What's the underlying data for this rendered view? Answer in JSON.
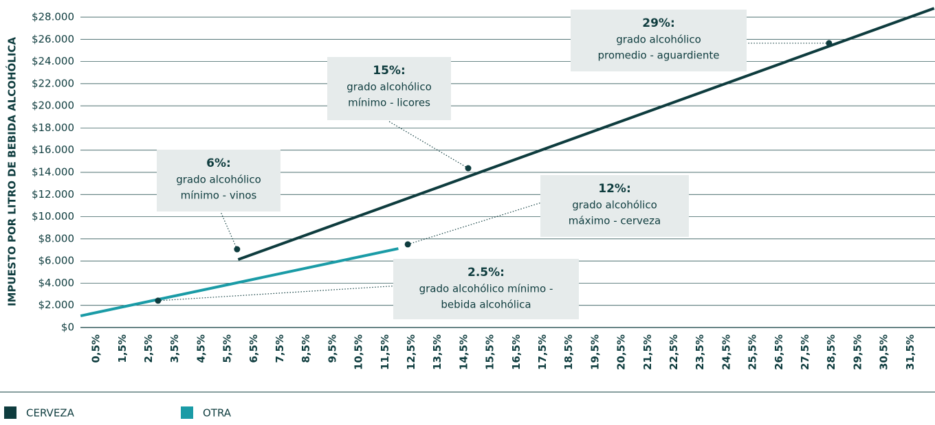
{
  "chart_data": {
    "type": "line",
    "y_label": "IMPUESTO POR LITRO DE BEBIDA ALCOHÓLICA",
    "xlim": [
      -0.1,
      32.4
    ],
    "ylim": [
      0,
      28000
    ],
    "xticks": [
      {
        "value": 0.5,
        "label": "0,5%"
      },
      {
        "value": 1.5,
        "label": "1,5%"
      },
      {
        "value": 2.5,
        "label": "2,5%"
      },
      {
        "value": 3.5,
        "label": "3,5%"
      },
      {
        "value": 4.5,
        "label": "4,5%"
      },
      {
        "value": 5.5,
        "label": "5,5%"
      },
      {
        "value": 6.5,
        "label": "6,5%"
      },
      {
        "value": 7.5,
        "label": "7,5%"
      },
      {
        "value": 8.5,
        "label": "8,5%"
      },
      {
        "value": 9.5,
        "label": "9,5%"
      },
      {
        "value": 10.5,
        "label": "10,5%"
      },
      {
        "value": 11.5,
        "label": "11,5%"
      },
      {
        "value": 12.5,
        "label": "12,5%"
      },
      {
        "value": 13.5,
        "label": "13,5%"
      },
      {
        "value": 14.5,
        "label": "14,5%"
      },
      {
        "value": 15.5,
        "label": "15,5%"
      },
      {
        "value": 16.5,
        "label": "16,5%"
      },
      {
        "value": 17.5,
        "label": "17,5%"
      },
      {
        "value": 18.5,
        "label": "18,5%"
      },
      {
        "value": 19.5,
        "label": "19,5%"
      },
      {
        "value": 20.5,
        "label": "20,5%"
      },
      {
        "value": 21.5,
        "label": "21,5%"
      },
      {
        "value": 22.5,
        "label": "22,5%"
      },
      {
        "value": 23.5,
        "label": "23,5%"
      },
      {
        "value": 24.5,
        "label": "24,5%"
      },
      {
        "value": 25.5,
        "label": "25,5%"
      },
      {
        "value": 26.5,
        "label": "26,5%"
      },
      {
        "value": 27.5,
        "label": "27,5%"
      },
      {
        "value": 28.5,
        "label": "28,5%"
      },
      {
        "value": 29.5,
        "label": "29,5%"
      },
      {
        "value": 30.5,
        "label": "30,5%"
      },
      {
        "value": 31.5,
        "label": "31,5%"
      }
    ],
    "yticks": [
      {
        "value": 0,
        "label": "$0"
      },
      {
        "value": 2000,
        "label": "$2.000"
      },
      {
        "value": 4000,
        "label": "$4.000"
      },
      {
        "value": 6000,
        "label": "$6.000"
      },
      {
        "value": 8000,
        "label": "$8.000"
      },
      {
        "value": 10000,
        "label": "$10.000"
      },
      {
        "value": 12000,
        "label": "$12.000"
      },
      {
        "value": 14000,
        "label": "$14.000"
      },
      {
        "value": 16000,
        "label": "$16.000"
      },
      {
        "value": 18000,
        "label": "$18.000"
      },
      {
        "value": 20000,
        "label": "$20.000"
      },
      {
        "value": 22000,
        "label": "$22.000"
      },
      {
        "value": 24000,
        "label": "$24.000"
      },
      {
        "value": 26000,
        "label": "$26.000"
      },
      {
        "value": 28000,
        "label": "$28.000"
      }
    ],
    "grid": true,
    "series": [
      {
        "name": "CERVEZA",
        "color": "#0e3c3e",
        "x": [
          5.9,
          32.4
        ],
        "values": [
          6130,
          28800
        ]
      },
      {
        "name": "OTRA",
        "color": "#1a9ba6",
        "x": [
          -0.1,
          12.0
        ],
        "values": [
          1050,
          7120
        ]
      }
    ],
    "annotations": [
      {
        "bold": "2.5%:",
        "lines": [
          "grado alcohólico mínimo -",
          "bebida alcohólica"
        ],
        "x": 2.85,
        "y": 2420
      },
      {
        "bold": "6%:",
        "lines": [
          "grado alcohólico",
          "mínimo - vinos"
        ],
        "x": 5.86,
        "y": 7060
      },
      {
        "bold": "12%:",
        "lines": [
          "grado alcohólico",
          "máximo - cerveza"
        ],
        "x": 12.36,
        "y": 7500
      },
      {
        "bold": "15%:",
        "lines": [
          "grado alcohólico",
          "mínimo - licores"
        ],
        "x": 14.66,
        "y": 14370
      },
      {
        "bold": "29%:",
        "lines": [
          "grado alcohólico",
          "promedio - aguardiente"
        ],
        "x": 28.4,
        "y": 25650
      }
    ]
  }
}
